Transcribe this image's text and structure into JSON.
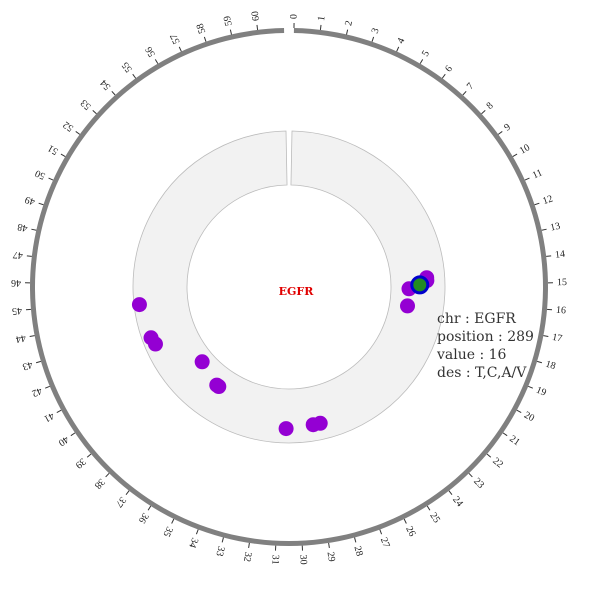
{
  "chart_data": {
    "type": "scatter",
    "title": "",
    "center_label": "EGFR",
    "axis": {
      "min": 0,
      "max": 61,
      "tick_step": 1
    },
    "colors": {
      "outer_ring": "#808080",
      "track_fill": "#f2f2f2",
      "track_stroke": "#bbbbbb",
      "point": "#9400d3",
      "highlight_fill": "#228b22",
      "highlight_stroke": "#0000cd",
      "center_label": "#e00000"
    },
    "points": [
      {
        "position": 14.5,
        "value": 20
      },
      {
        "position": 14.7,
        "value": 20
      },
      {
        "position": 15.3,
        "value": 10
      },
      {
        "position": 16.7,
        "value": 10
      },
      {
        "position": 15.0,
        "value": 16,
        "highlight": true
      },
      {
        "position": 28.3,
        "value": 21
      },
      {
        "position": 28.8,
        "value": 21
      },
      {
        "position": 30.7,
        "value": 22
      },
      {
        "position": 36.5,
        "value": 11
      },
      {
        "position": 36.7,
        "value": 11
      },
      {
        "position": 38.9,
        "value": 7
      },
      {
        "position": 41.9,
        "value": 24
      },
      {
        "position": 42.4,
        "value": 25
      },
      {
        "position": 44.7,
        "value": 27
      }
    ]
  },
  "tooltip": {
    "chr": "chr : EGFR",
    "position": "position : 289",
    "value": "value : 16",
    "des": "des : T,C,A/V"
  }
}
